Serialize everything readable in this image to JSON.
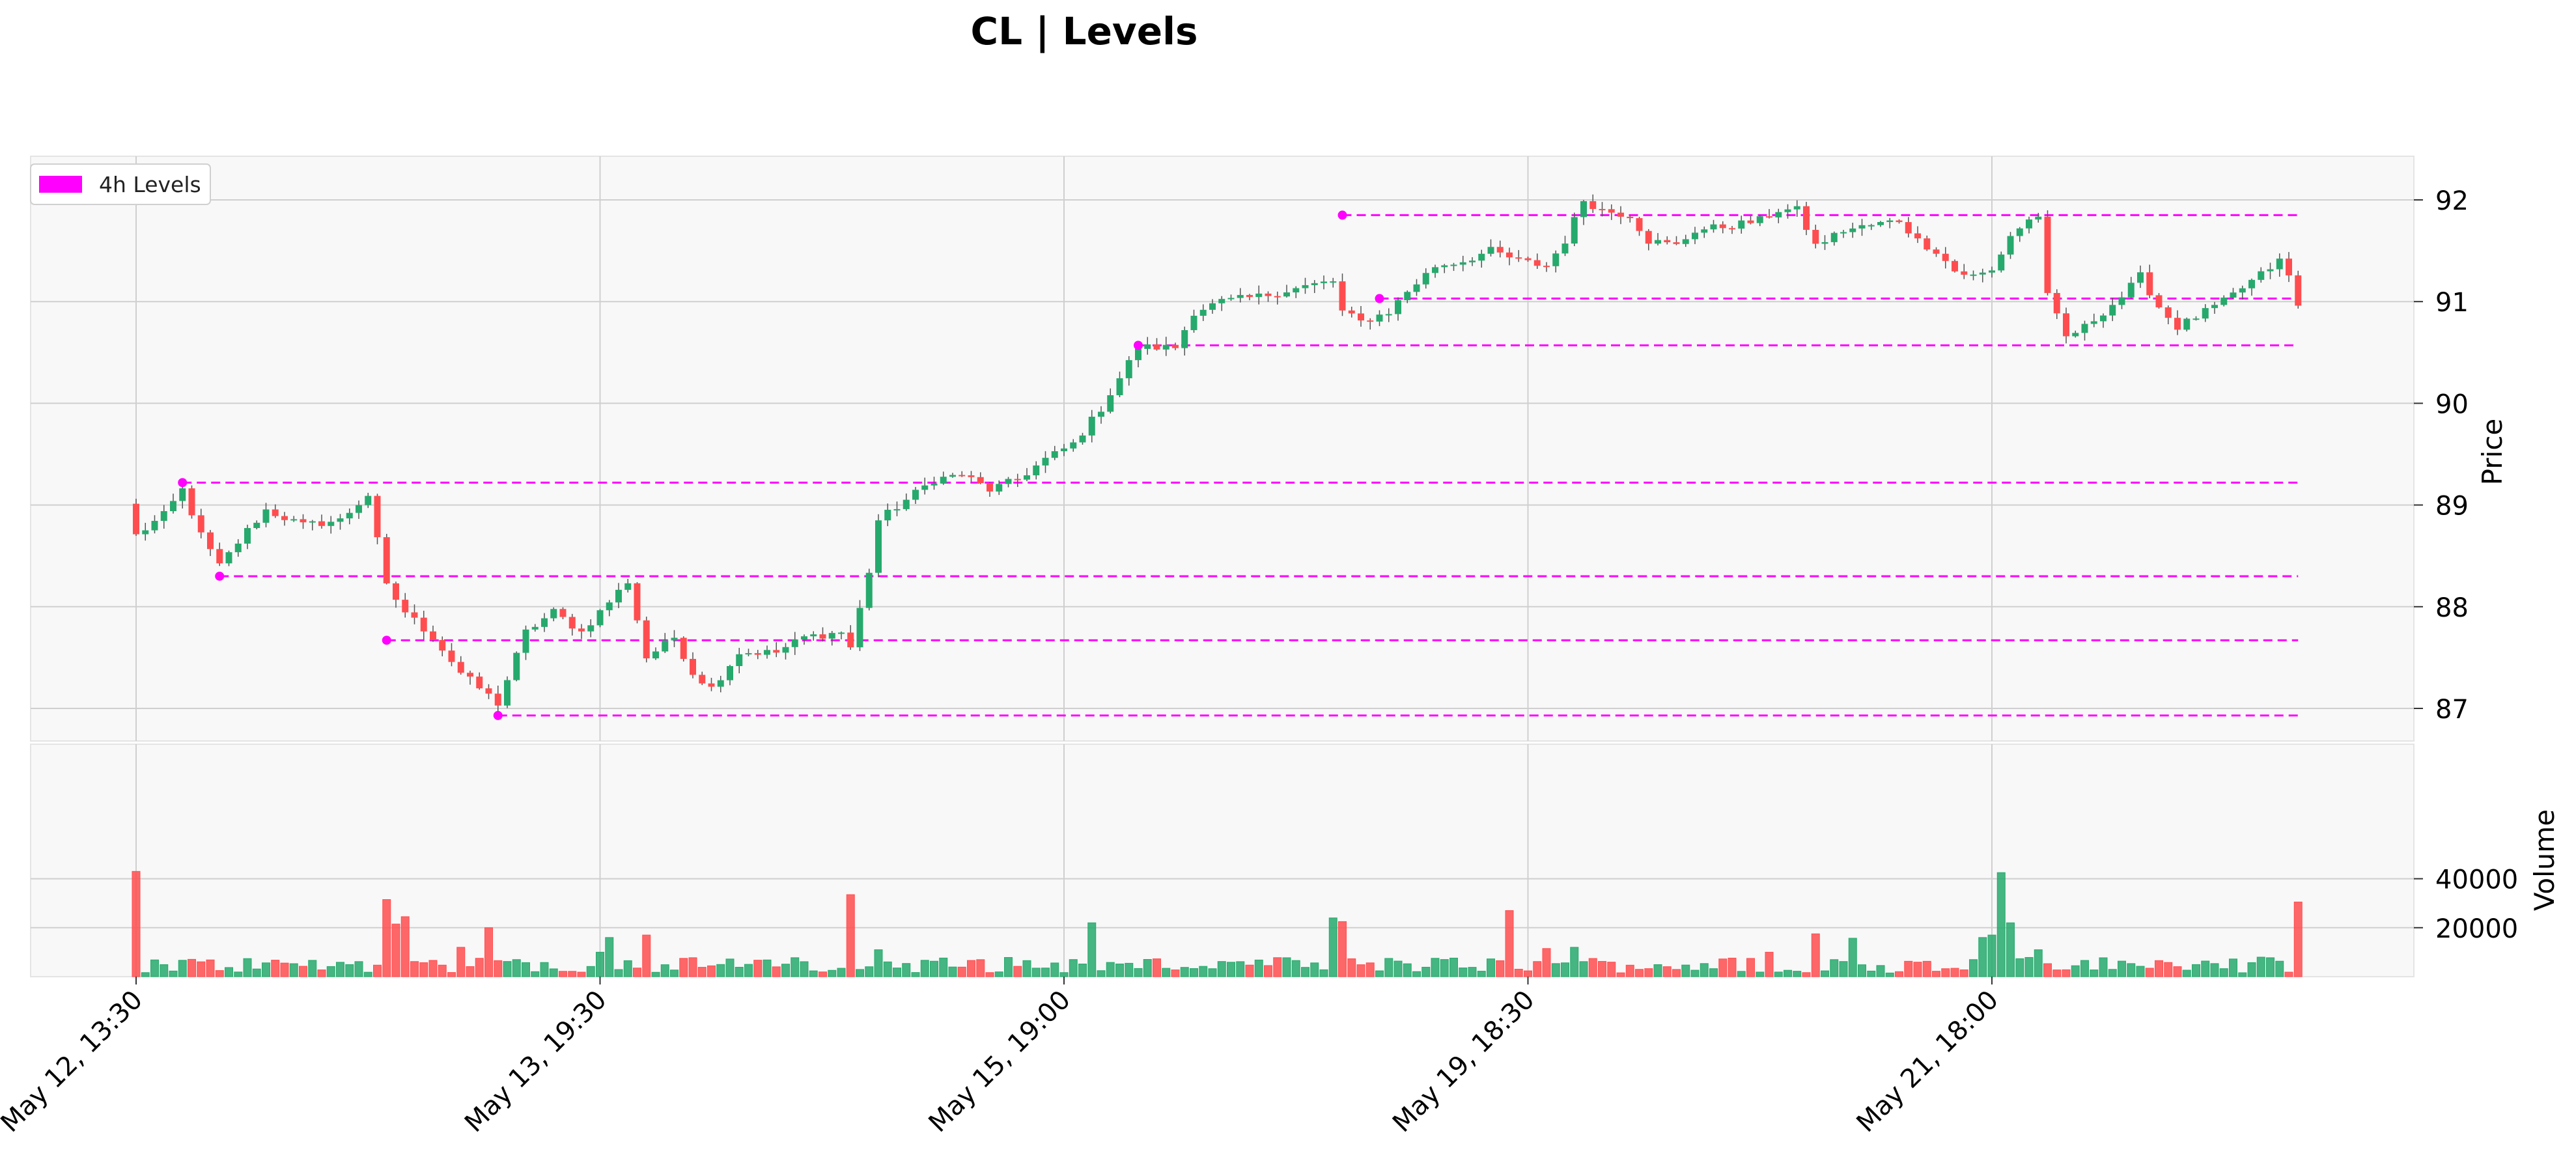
{
  "chart_data": {
    "type": "candlestick",
    "title": "CL | Levels",
    "legend": {
      "placement": "top-left",
      "label": "4h Levels",
      "color": "#ff00ff"
    },
    "colors": {
      "up": "#26a96c",
      "down": "#ff4d4f",
      "level": "#ff00ff",
      "panel_bg": "#f8f8f8",
      "grid": "#cfcfcf"
    },
    "price_panel": {
      "ylabel": "Price",
      "ylim": [
        86.8,
        92.4
      ],
      "yticks": [
        87,
        88,
        89,
        90,
        91,
        92
      ],
      "grid": true
    },
    "volume_panel": {
      "ylabel": "Volume",
      "ylim": [
        0,
        44000
      ],
      "yticks": [
        20000,
        40000
      ],
      "grid": true
    },
    "bar_count": 234,
    "xticks": [
      {
        "index": 0,
        "label": "May 12, 13:30"
      },
      {
        "index": 50,
        "label": "May 13, 19:30"
      },
      {
        "index": 100,
        "label": "May 15, 19:00"
      },
      {
        "index": 150,
        "label": "May 19, 18:30"
      },
      {
        "index": 200,
        "label": "May 21, 18:00"
      }
    ],
    "levels": [
      {
        "price": 91.85,
        "from": 130,
        "to": 233
      },
      {
        "price": 91.03,
        "from": 134,
        "to": 233
      },
      {
        "price": 90.57,
        "from": 108,
        "to": 233
      },
      {
        "price": 89.22,
        "from": 5,
        "to": 233
      },
      {
        "price": 88.3,
        "from": 9,
        "to": 233
      },
      {
        "price": 87.67,
        "from": 27,
        "to": 233
      },
      {
        "price": 86.93,
        "from": 39,
        "to": 233
      }
    ],
    "close_path": [
      [
        0,
        88.7
      ],
      [
        3,
        88.9
      ],
      [
        5,
        89.15
      ],
      [
        7,
        88.7
      ],
      [
        9,
        88.4
      ],
      [
        12,
        88.75
      ],
      [
        14,
        88.95
      ],
      [
        18,
        88.8
      ],
      [
        22,
        88.85
      ],
      [
        25,
        89.1
      ],
      [
        27,
        88.2
      ],
      [
        29,
        87.95
      ],
      [
        32,
        87.7
      ],
      [
        35,
        87.35
      ],
      [
        39,
        87.05
      ],
      [
        42,
        87.75
      ],
      [
        45,
        87.95
      ],
      [
        48,
        87.75
      ],
      [
        51,
        88.05
      ],
      [
        53,
        88.25
      ],
      [
        55,
        87.5
      ],
      [
        58,
        87.7
      ],
      [
        60,
        87.35
      ],
      [
        62,
        87.2
      ],
      [
        65,
        87.55
      ],
      [
        69,
        87.55
      ],
      [
        72,
        87.7
      ],
      [
        76,
        87.75
      ],
      [
        77,
        87.6
      ],
      [
        79,
        88.35
      ],
      [
        80,
        88.85
      ],
      [
        83,
        89.05
      ],
      [
        86,
        89.25
      ],
      [
        89,
        89.3
      ],
      [
        92,
        89.15
      ],
      [
        95,
        89.25
      ],
      [
        98,
        89.45
      ],
      [
        101,
        89.6
      ],
      [
        104,
        89.95
      ],
      [
        106,
        90.25
      ],
      [
        108,
        90.55
      ],
      [
        112,
        90.55
      ],
      [
        114,
        90.9
      ],
      [
        117,
        91.0
      ],
      [
        121,
        91.05
      ],
      [
        126,
        91.15
      ],
      [
        129,
        91.2
      ],
      [
        130,
        90.9
      ],
      [
        132,
        90.8
      ],
      [
        135,
        90.9
      ],
      [
        137,
        91.1
      ],
      [
        140,
        91.35
      ],
      [
        143,
        91.4
      ],
      [
        146,
        91.5
      ],
      [
        149,
        91.4
      ],
      [
        152,
        91.35
      ],
      [
        154,
        91.6
      ],
      [
        156,
        92.0
      ],
      [
        158,
        91.9
      ],
      [
        161,
        91.85
      ],
      [
        163,
        91.6
      ],
      [
        166,
        91.55
      ],
      [
        168,
        91.7
      ],
      [
        172,
        91.75
      ],
      [
        175,
        91.8
      ],
      [
        177,
        91.9
      ],
      [
        179,
        91.9
      ],
      [
        181,
        91.55
      ],
      [
        184,
        91.7
      ],
      [
        187,
        91.75
      ],
      [
        190,
        91.8
      ],
      [
        192,
        91.6
      ],
      [
        194,
        91.5
      ],
      [
        196,
        91.3
      ],
      [
        198,
        91.25
      ],
      [
        200,
        91.3
      ],
      [
        202,
        91.65
      ],
      [
        204,
        91.8
      ],
      [
        205,
        91.85
      ],
      [
        206,
        91.05
      ],
      [
        208,
        90.65
      ],
      [
        210,
        90.75
      ],
      [
        212,
        90.9
      ],
      [
        214,
        91.05
      ],
      [
        216,
        91.25
      ],
      [
        218,
        90.95
      ],
      [
        220,
        90.75
      ],
      [
        222,
        90.85
      ],
      [
        225,
        91.0
      ],
      [
        228,
        91.2
      ],
      [
        231,
        91.4
      ],
      [
        232,
        91.25
      ],
      [
        233,
        90.95
      ]
    ],
    "volume_spikes": [
      [
        0,
        43000
      ],
      [
        27,
        31500
      ],
      [
        28,
        21500
      ],
      [
        29,
        24500
      ],
      [
        35,
        12000
      ],
      [
        38,
        20000
      ],
      [
        50,
        10000
      ],
      [
        51,
        16000
      ],
      [
        55,
        17000
      ],
      [
        77,
        33500
      ],
      [
        80,
        11000
      ],
      [
        103,
        22000
      ],
      [
        129,
        24000
      ],
      [
        130,
        22500
      ],
      [
        148,
        27000
      ],
      [
        152,
        11500
      ],
      [
        155,
        12000
      ],
      [
        176,
        10000
      ],
      [
        181,
        17500
      ],
      [
        185,
        15700
      ],
      [
        199,
        16000
      ],
      [
        200,
        17000
      ],
      [
        201,
        42500
      ],
      [
        202,
        22000
      ],
      [
        205,
        11000
      ],
      [
        233,
        30500
      ]
    ]
  }
}
